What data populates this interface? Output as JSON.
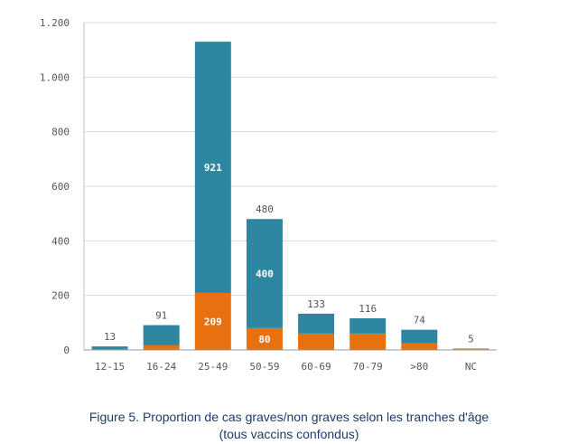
{
  "chart_data": {
    "type": "bar",
    "stacked": true,
    "categories": [
      "12-15",
      "16-24",
      "25-49",
      "50-59",
      "60-69",
      "70-79",
      ">80",
      "NC"
    ],
    "series": [
      {
        "values": [
          2,
          17,
          209,
          80,
          60,
          60,
          24,
          3
        ],
        "color": "#e8700f"
      },
      {
        "values": [
          11,
          74,
          921,
          400,
          73,
          56,
          50,
          2
        ],
        "color": "#2f86a0"
      }
    ],
    "totals": [
      13,
      91,
      1130,
      480,
      133,
      116,
      74,
      5
    ],
    "total_labels": {
      "0": "13",
      "1": "91",
      "3": "480",
      "4": "133",
      "5": "116",
      "6": "74",
      "7": "5"
    },
    "inner_labels": [
      {
        "index": 2,
        "series": 1,
        "text": "921"
      },
      {
        "index": 2,
        "series": 0,
        "text": "209"
      },
      {
        "index": 3,
        "series": 1,
        "text": "400"
      },
      {
        "index": 3,
        "series": 0,
        "text": "80"
      }
    ],
    "ylim": [
      0,
      1200
    ],
    "yticks": [
      0,
      200,
      400,
      600,
      800,
      1000,
      1200
    ],
    "ytick_labels": [
      "0",
      "200",
      "400",
      "600",
      "800",
      "1.000",
      "1.200"
    ],
    "grid": true,
    "caption": {
      "line1": "Figure 5. Proportion de cas graves/non graves selon les tranches d'âge",
      "line2": "(tous vaccins confondus)"
    }
  }
}
